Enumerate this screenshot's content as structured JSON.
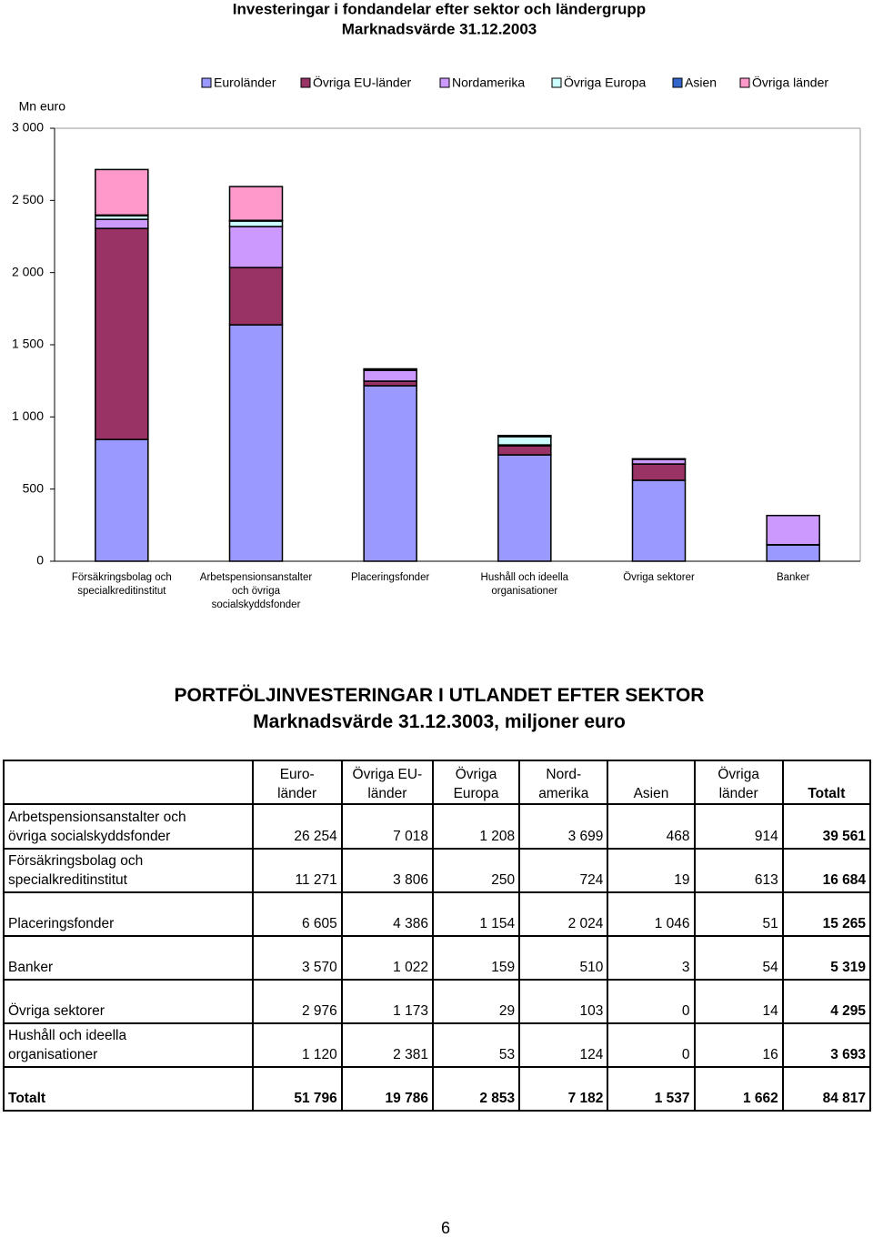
{
  "chart_data": {
    "type": "bar",
    "stacked": true,
    "title": [
      "Investeringar i fondandelar efter sektor och ländergrupp",
      "Marknadsvärde 31.12.2003"
    ],
    "y_label": "Mn euro",
    "categories": [
      [
        "Försäkringsbolag och",
        "specialkreditinstitut"
      ],
      [
        "Arbetspensionsanstalter",
        "och övriga",
        "socialskyddsfonder"
      ],
      [
        "Placeringsfonder"
      ],
      [
        "Hushåll och ideella",
        "organisationer"
      ],
      [
        "Övriga sektorer"
      ],
      [
        "Banker"
      ]
    ],
    "series": [
      {
        "name": "Euroländer",
        "color": "#9999ff",
        "values": [
          844,
          1638,
          1216,
          737,
          561,
          113
        ]
      },
      {
        "name": "Övriga EU-länder",
        "color": "#993366",
        "values": [
          1462,
          397,
          32,
          63,
          113,
          2
        ]
      },
      {
        "name": "Nordamerika",
        "color": "#cc99ff",
        "values": [
          63,
          284,
          75,
          6,
          32,
          202
        ]
      },
      {
        "name": "Övriga Europa",
        "color": "#ccffff",
        "values": [
          25,
          38,
          5,
          57,
          2,
          0
        ]
      },
      {
        "name": "Asien",
        "color": "#3366cc",
        "values": [
          5,
          5,
          5,
          5,
          2,
          0
        ]
      },
      {
        "name": "Övriga länder",
        "color": "#ff99cc",
        "values": [
          315,
          234,
          0,
          3,
          0,
          0
        ]
      }
    ],
    "ylim": [
      0,
      3000
    ],
    "yticks": [
      0,
      500,
      {
        "value": 1000,
        "label": "1 000"
      },
      {
        "value": 1500,
        "label": "1 500"
      },
      {
        "value": 2000,
        "label": "2 000"
      },
      {
        "value": 2500,
        "label": "2 500"
      },
      {
        "value": 3000,
        "label": "3 000"
      }
    ],
    "grid": false,
    "legend": "top"
  },
  "table": {
    "title": [
      "PORTFÖLJINVESTERINGAR I UTLANDET EFTER SEKTOR",
      "Marknadsvärde 31.12.3003, miljoner euro"
    ],
    "header": [
      [
        "Euro-",
        "länder"
      ],
      [
        "Övriga EU-",
        "länder"
      ],
      [
        "Övriga",
        "Europa"
      ],
      [
        "Nord-",
        "amerika"
      ],
      [
        "Asien"
      ],
      [
        "Övriga",
        "länder"
      ],
      [
        "Totalt"
      ]
    ],
    "rows": [
      {
        "label": [
          "Arbetspensionsanstalter och",
          "övriga socialskyddsfonder"
        ],
        "cells": [
          "26 254",
          "7 018",
          "1 208",
          "3 699",
          "468",
          "914",
          "39 561"
        ]
      },
      {
        "label": [
          "Försäkringsbolag och",
          "specialkreditinstitut"
        ],
        "cells": [
          "11 271",
          "3 806",
          "250",
          "724",
          "19",
          "613",
          "16 684"
        ]
      },
      {
        "label": [
          "Placeringsfonder"
        ],
        "cells": [
          "6 605",
          "4 386",
          "1 154",
          "2 024",
          "1 046",
          "51",
          "15 265"
        ]
      },
      {
        "label": [
          "Banker"
        ],
        "cells": [
          "3 570",
          "1 022",
          "159",
          "510",
          "3",
          "54",
          "5 319"
        ]
      },
      {
        "label": [
          "Övriga sektorer"
        ],
        "cells": [
          "2 976",
          "1 173",
          "29",
          "103",
          "0",
          "14",
          "4 295"
        ]
      },
      {
        "label": [
          "Hushåll och ideella",
          "organisationer"
        ],
        "cells": [
          "1 120",
          "2 381",
          "53",
          "124",
          "0",
          "16",
          "3 693"
        ]
      },
      {
        "label": [
          "Totalt"
        ],
        "cells": [
          "51 796",
          "19 786",
          "2 853",
          "7 182",
          "1 537",
          "1 662",
          "84 817"
        ]
      }
    ]
  },
  "page_number": "6"
}
